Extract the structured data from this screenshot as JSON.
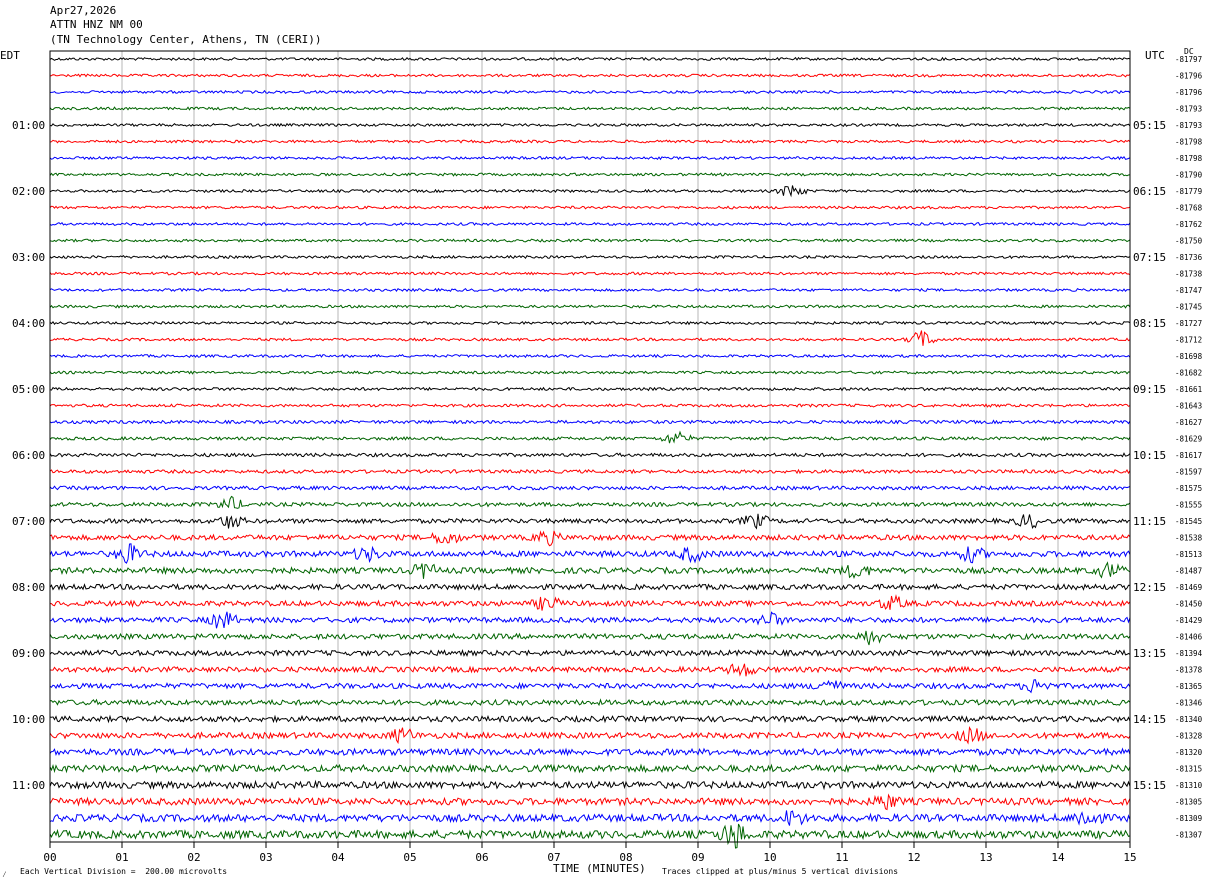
{
  "header": {
    "date": "Apr27,2026",
    "station": "ATTN HNZ NM 00",
    "location": "(TN Technology Center, Athens, TN (CERI))"
  },
  "axes": {
    "left_timezone": "EDT",
    "right_timezone": "UTC",
    "dc_label": "DC",
    "x_axis_label": "TIME (MINUTES)"
  },
  "footer": {
    "scale_note": "Each Vertical Division =  200.00 microvolts",
    "clip_note": "Traces clipped at plus/minus 5 vertical divisions",
    "logo_mark": "⁄"
  },
  "colors": {
    "trace_cycle": [
      "#000000",
      "#ff0000",
      "#0000ff",
      "#006400"
    ],
    "grid": "#999999",
    "background": "#ffffff"
  },
  "chart_data": {
    "type": "helicorder",
    "x_ticks": [
      "00",
      "01",
      "02",
      "03",
      "04",
      "05",
      "06",
      "07",
      "08",
      "09",
      "10",
      "11",
      "12",
      "13",
      "14",
      "15"
    ],
    "xlim": [
      0,
      15
    ],
    "minutes_per_line": 15,
    "left_hour_labels": [
      "01:00",
      "02:00",
      "03:00",
      "04:00",
      "05:00",
      "06:00",
      "07:00",
      "08:00",
      "09:00",
      "10:00",
      "11:00"
    ],
    "right_hour_labels": [
      "05:15",
      "06:15",
      "07:15",
      "08:15",
      "09:15",
      "10:15",
      "11:15",
      "12:15",
      "13:15",
      "14:15",
      "15:15"
    ],
    "hour_label_first_trace": 4,
    "dc_offsets": [
      "-81797",
      "-81796",
      "-81796",
      "-81793",
      "-81793",
      "-81798",
      "-81798",
      "-81790",
      "-81779",
      "-81768",
      "-81762",
      "-81750",
      "-81736",
      "-81738",
      "-81747",
      "-81745",
      "-81727",
      "-81712",
      "-81698",
      "-81682",
      "-81661",
      "-81643",
      "-81627",
      "-81629",
      "-81617",
      "-81597",
      "-81575",
      "-81555",
      "-81545",
      "-81538",
      "-81513",
      "-81487",
      "-81469",
      "-81450",
      "-81429",
      "-81406",
      "-81394",
      "-81378",
      "-81365",
      "-81346",
      "-81340",
      "-81328",
      "-81320",
      "-81315",
      "-81310",
      "-81305",
      "-81309",
      "-81307"
    ],
    "trace_amplitude_levels": [
      1,
      1,
      1,
      1,
      1,
      1,
      1,
      1,
      1,
      1,
      1,
      1,
      1,
      1,
      1,
      1,
      1,
      1,
      1,
      1,
      1.1,
      1.1,
      1.2,
      1.2,
      1.3,
      1.3,
      1.4,
      1.5,
      1.7,
      2,
      2.2,
      2.2,
      2,
      2,
      2,
      2,
      2,
      2,
      2,
      2,
      2.1,
      2.2,
      2.4,
      2.6,
      2.6,
      2.6,
      2.8,
      3
    ],
    "events": [
      {
        "trace": 8,
        "minute": 10.3,
        "amp": 3
      },
      {
        "trace": 17,
        "minute": 12.1,
        "amp": 4
      },
      {
        "trace": 23,
        "minute": 8.7,
        "amp": 3
      },
      {
        "trace": 27,
        "minute": 2.5,
        "amp": 3
      },
      {
        "trace": 28,
        "minute": 2.5,
        "amp": 3
      },
      {
        "trace": 28,
        "minute": 9.8,
        "amp": 3
      },
      {
        "trace": 28,
        "minute": 13.6,
        "amp": 3
      },
      {
        "trace": 29,
        "minute": 5.5,
        "amp": 3
      },
      {
        "trace": 29,
        "minute": 6.9,
        "amp": 3
      },
      {
        "trace": 30,
        "minute": 1.1,
        "amp": 4
      },
      {
        "trace": 30,
        "minute": 4.4,
        "amp": 3
      },
      {
        "trace": 30,
        "minute": 8.9,
        "amp": 3
      },
      {
        "trace": 30,
        "minute": 12.8,
        "amp": 3
      },
      {
        "trace": 31,
        "minute": 5.2,
        "amp": 3
      },
      {
        "trace": 31,
        "minute": 11.2,
        "amp": 3
      },
      {
        "trace": 31,
        "minute": 14.7,
        "amp": 3
      },
      {
        "trace": 33,
        "minute": 6.9,
        "amp": 3
      },
      {
        "trace": 33,
        "minute": 11.7,
        "amp": 3
      },
      {
        "trace": 34,
        "minute": 2.4,
        "amp": 4
      },
      {
        "trace": 34,
        "minute": 10.0,
        "amp": 3
      },
      {
        "trace": 35,
        "minute": 11.4,
        "amp": 3
      },
      {
        "trace": 37,
        "minute": 9.6,
        "amp": 3
      },
      {
        "trace": 38,
        "minute": 10.8,
        "amp": 3
      },
      {
        "trace": 38,
        "minute": 13.7,
        "amp": 3
      },
      {
        "trace": 41,
        "minute": 4.9,
        "amp": 3
      },
      {
        "trace": 41,
        "minute": 12.8,
        "amp": 3
      },
      {
        "trace": 45,
        "minute": 11.6,
        "amp": 3
      },
      {
        "trace": 46,
        "minute": 10.3,
        "amp": 3
      },
      {
        "trace": 46,
        "minute": 14.4,
        "amp": 4
      },
      {
        "trace": 47,
        "minute": 9.5,
        "amp": 6
      }
    ]
  }
}
